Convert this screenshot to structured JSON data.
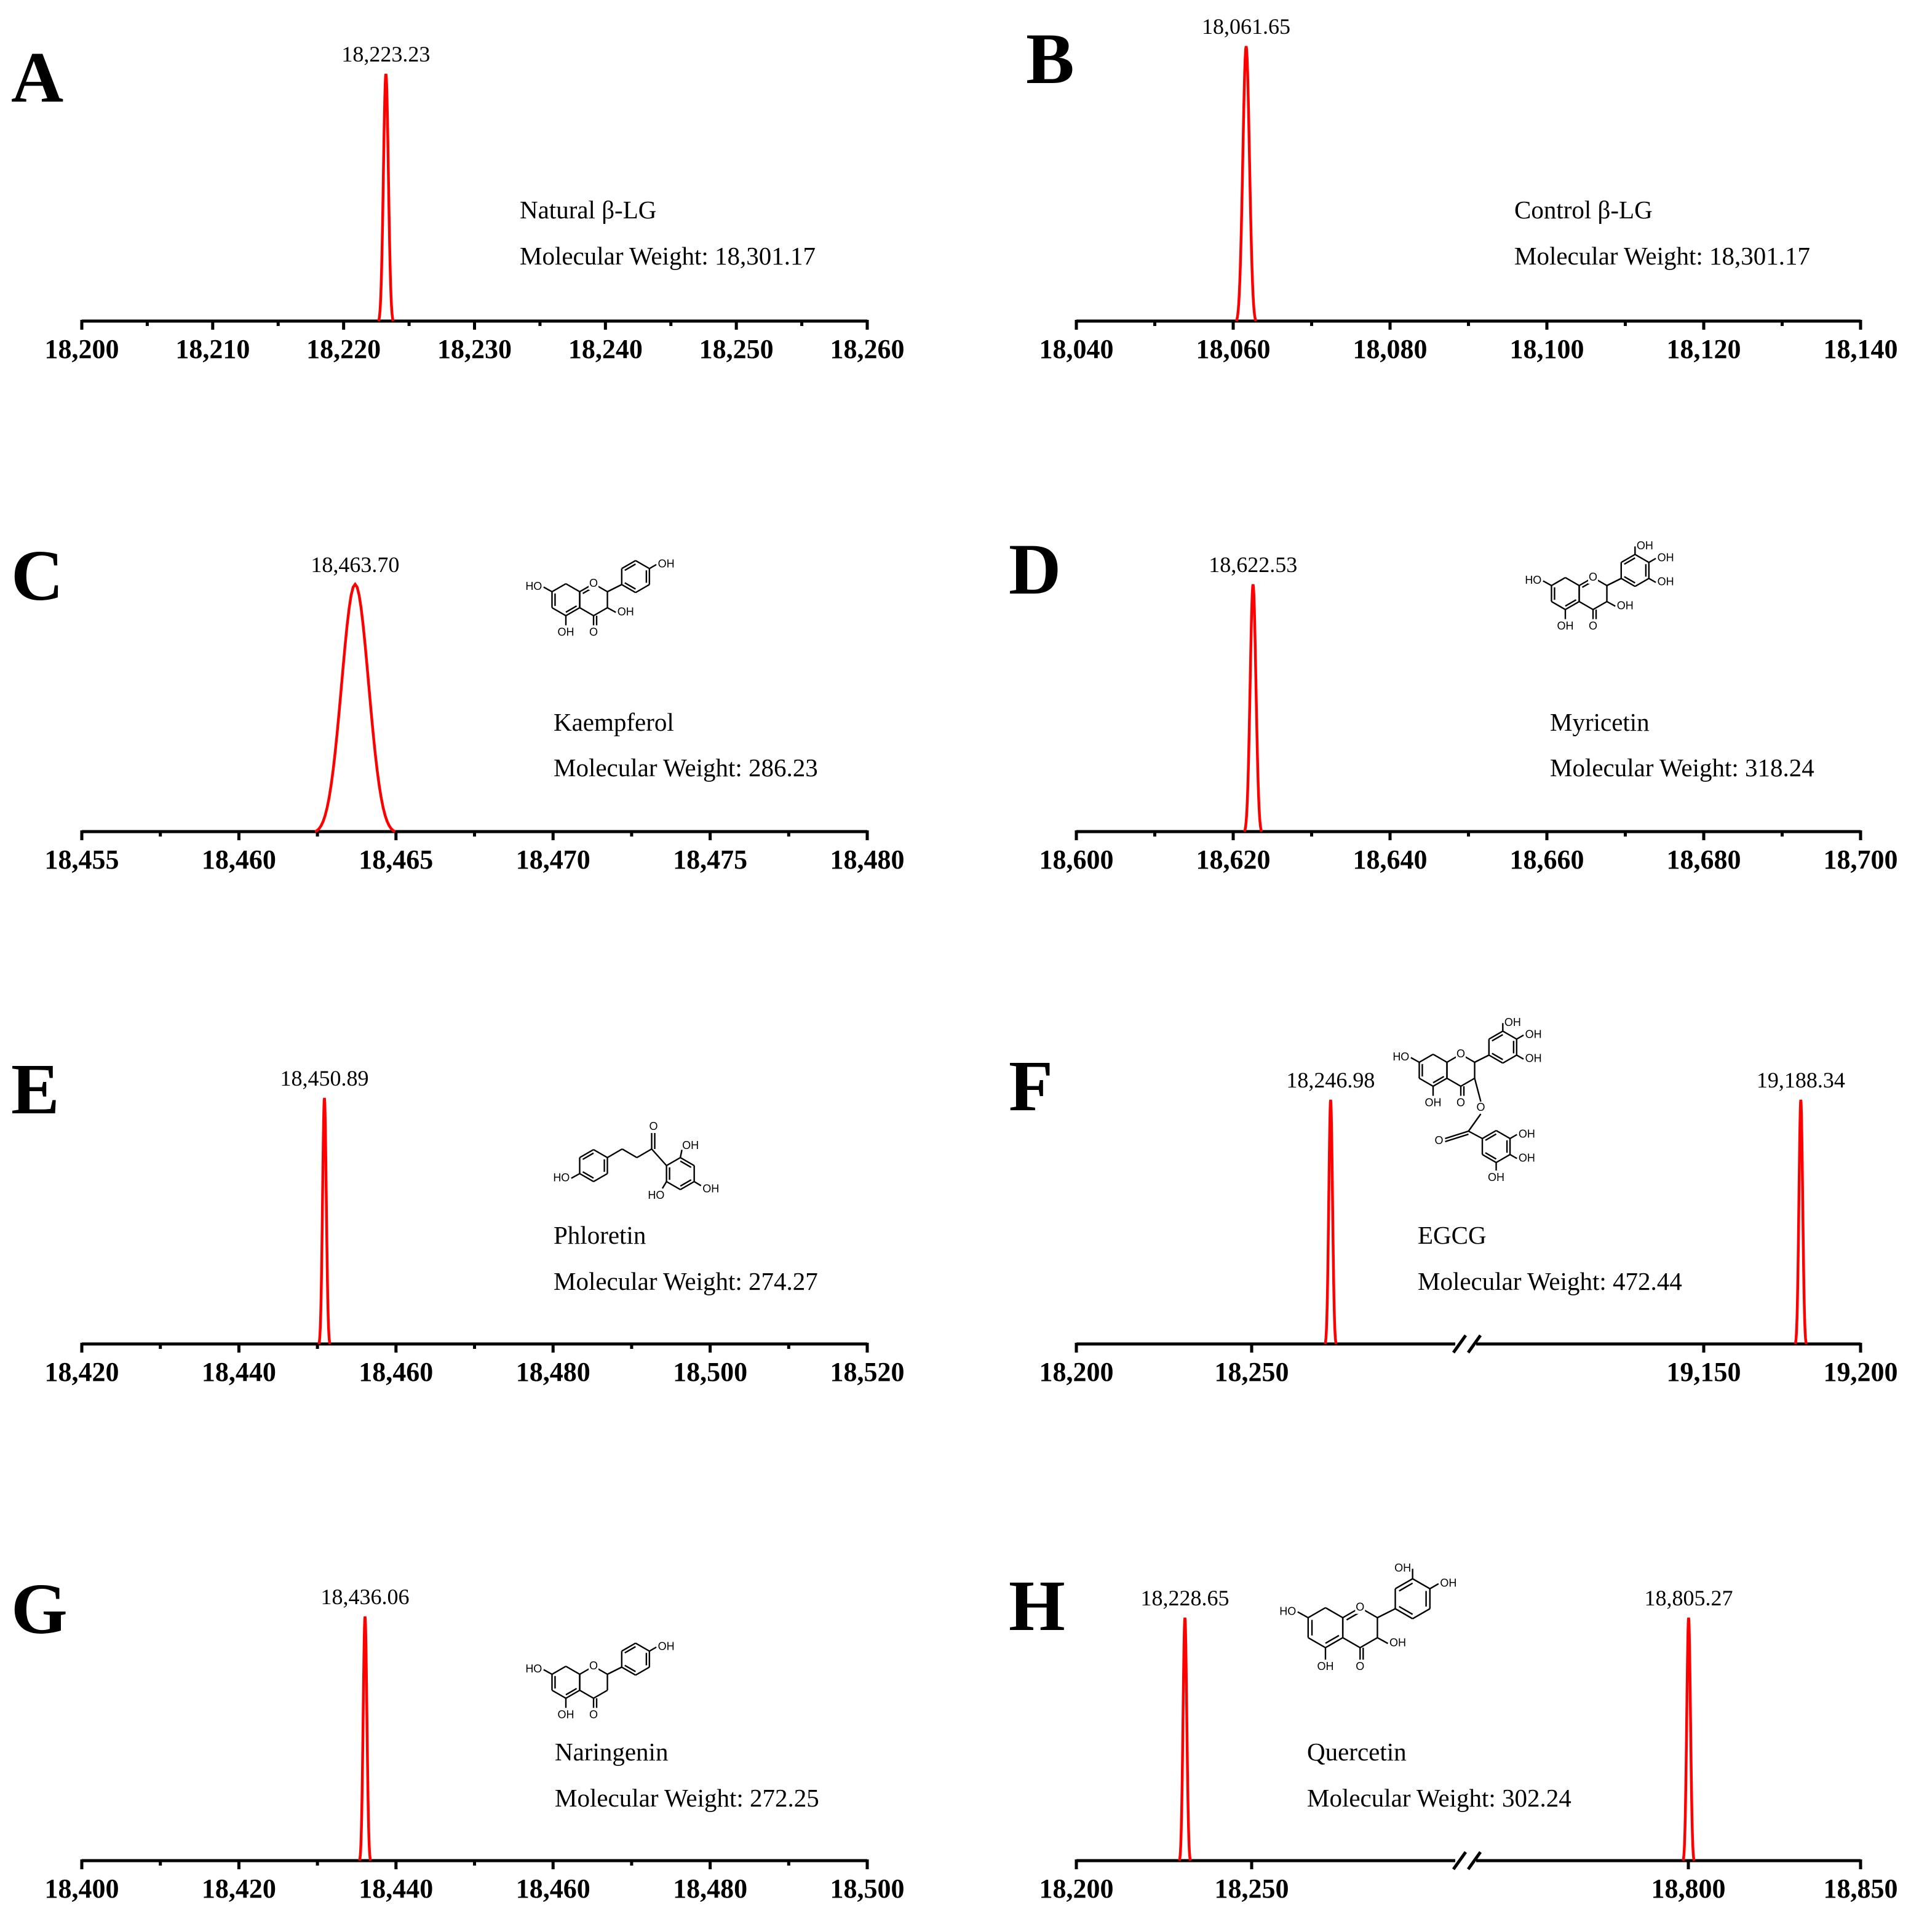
{
  "chart_data": [
    {
      "panel": "A",
      "type": "line",
      "xlim": [
        18200,
        18260
      ],
      "xticks": [
        "18,200",
        "18,210",
        "18,220",
        "18,230",
        "18,240",
        "18,250",
        "18,260"
      ],
      "peaks": [
        {
          "x": 18223.23,
          "label": "18,223.23"
        }
      ],
      "annotation": {
        "name": "Natural β-LG",
        "mw": "Molecular Weight: 18,301.17"
      }
    },
    {
      "panel": "B",
      "type": "line",
      "xlim": [
        18040,
        18140
      ],
      "xticks": [
        "18,040",
        "18,060",
        "18,080",
        "18,100",
        "18,120",
        "18,140"
      ],
      "peaks": [
        {
          "x": 18061.65,
          "label": "18,061.65"
        }
      ],
      "annotation": {
        "name": "Control β-LG",
        "mw": "Molecular Weight: 18,301.17"
      }
    },
    {
      "panel": "C",
      "type": "line",
      "xlim": [
        18455,
        18480
      ],
      "xticks": [
        "18,455",
        "18,460",
        "18,465",
        "18,470",
        "18,475",
        "18,480"
      ],
      "peaks": [
        {
          "x": 18463.7,
          "label": "18,463.70"
        }
      ],
      "annotation": {
        "name": "Kaempferol",
        "mw": "Molecular Weight: 286.23"
      }
    },
    {
      "panel": "D",
      "type": "line",
      "xlim": [
        18600,
        18700
      ],
      "xticks": [
        "18,600",
        "18,620",
        "18,640",
        "18,660",
        "18,680",
        "18,700"
      ],
      "peaks": [
        {
          "x": 18622.53,
          "label": "18,622.53"
        }
      ],
      "annotation": {
        "name": "Myricetin",
        "mw": "Molecular Weight: 318.24"
      }
    },
    {
      "panel": "E",
      "type": "line",
      "xlim": [
        18420,
        18520
      ],
      "xticks": [
        "18,420",
        "18,440",
        "18,460",
        "18,480",
        "18,500",
        "18,520"
      ],
      "peaks": [
        {
          "x": 18450.89,
          "label": "18,450.89"
        }
      ],
      "annotation": {
        "name": "Phloretin",
        "mw": "Molecular Weight: 274.27"
      }
    },
    {
      "panel": "F",
      "type": "line",
      "axis_break": true,
      "xlim": [
        18200,
        19200
      ],
      "xticks": [
        "18,200",
        "18,250",
        "19,150",
        "19,200"
      ],
      "peaks": [
        {
          "x": 18246.98,
          "label": "18,246.98"
        },
        {
          "x": 19188.34,
          "label": "19,188.34"
        }
      ],
      "annotation": {
        "name": "EGCG",
        "mw": "Molecular Weight: 472.44"
      }
    },
    {
      "panel": "G",
      "type": "line",
      "xlim": [
        18400,
        18500
      ],
      "xticks": [
        "18,400",
        "18,420",
        "18,440",
        "18,460",
        "18,480",
        "18,500"
      ],
      "peaks": [
        {
          "x": 18436.06,
          "label": "18,436.06"
        }
      ],
      "annotation": {
        "name": "Naringenin",
        "mw": "Molecular Weight: 272.25"
      }
    },
    {
      "panel": "H",
      "type": "line",
      "axis_break": true,
      "xlim": [
        18200,
        18850
      ],
      "xticks": [
        "18,200",
        "18,250",
        "18,800",
        "18,850"
      ],
      "peaks": [
        {
          "x": 18228.65,
          "label": "18,228.65"
        },
        {
          "x": 18805.27,
          "label": "18,805.27"
        }
      ],
      "annotation": {
        "name": "Quercetin",
        "mw": "Molecular Weight: 302.24"
      }
    }
  ],
  "colors": {
    "peak": "#ff0000",
    "axis": "#000000"
  },
  "atom_labels": {
    "hydroxyl": "OH",
    "ho": "HO",
    "oxygen": "O"
  }
}
